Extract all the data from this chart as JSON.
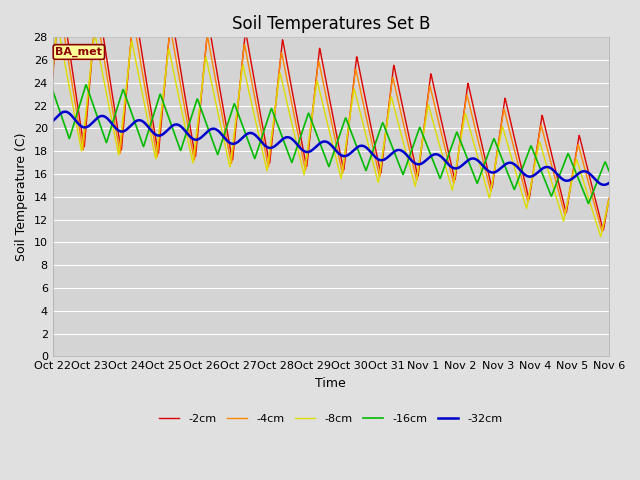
{
  "title": "Soil Temperatures Set B",
  "xlabel": "Time",
  "ylabel": "Soil Temperature (C)",
  "ylim": [
    0,
    28
  ],
  "annotation": "BA_met",
  "legend_labels": [
    "-2cm",
    "-4cm",
    "-8cm",
    "-16cm",
    "-32cm"
  ],
  "line_colors": [
    "#dd0000",
    "#ff8800",
    "#dddd00",
    "#00bb00",
    "#0000cc"
  ],
  "line_widths": [
    1.0,
    1.0,
    1.0,
    1.2,
    1.8
  ],
  "xtick_labels": [
    "Oct 22",
    "Oct 23",
    "Oct 24",
    "Oct 25",
    "Oct 26",
    "Oct 27",
    "Oct 28",
    "Oct 29",
    "Oct 30",
    "Oct 31",
    "Nov 1",
    "Nov 2",
    "Nov 3",
    "Nov 4",
    "Nov 5",
    "Nov 6"
  ],
  "background_color": "#e0e0e0",
  "plot_bg_color": "#d4d4d4",
  "grid_color": "#ffffff",
  "title_fontsize": 12,
  "axis_fontsize": 9,
  "tick_fontsize": 8
}
